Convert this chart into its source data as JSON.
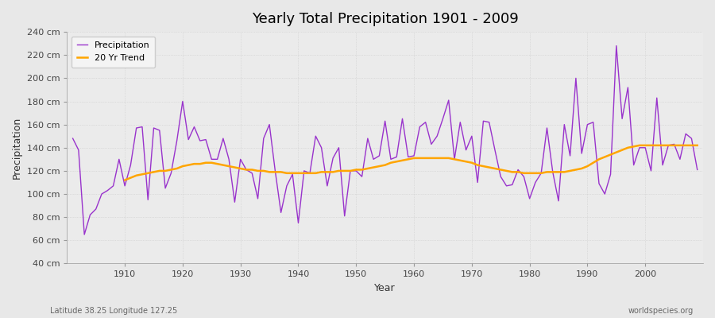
{
  "title": "Yearly Total Precipitation 1901 - 2009",
  "xlabel": "Year",
  "ylabel": "Precipitation",
  "subtitle_left": "Latitude 38.25 Longitude 127.25",
  "subtitle_right": "worldspecies.org",
  "precip_color": "#9933CC",
  "trend_color": "#FFA500",
  "fig_bg_color": "#E8E8E8",
  "plot_bg_color": "#EBEBEB",
  "legend_bg": "#F5F5F5",
  "ylim": [
    40,
    240
  ],
  "yticks": [
    40,
    60,
    80,
    100,
    120,
    140,
    160,
    180,
    200,
    220,
    240
  ],
  "xlim": [
    1900,
    2010
  ],
  "xticks": [
    1910,
    1920,
    1930,
    1940,
    1950,
    1960,
    1970,
    1980,
    1990,
    2000
  ],
  "years": [
    1901,
    1902,
    1903,
    1904,
    1905,
    1906,
    1907,
    1908,
    1909,
    1910,
    1911,
    1912,
    1913,
    1914,
    1915,
    1916,
    1917,
    1918,
    1919,
    1920,
    1921,
    1922,
    1923,
    1924,
    1925,
    1926,
    1927,
    1928,
    1929,
    1930,
    1931,
    1932,
    1933,
    1934,
    1935,
    1936,
    1937,
    1938,
    1939,
    1940,
    1941,
    1942,
    1943,
    1944,
    1945,
    1946,
    1947,
    1948,
    1949,
    1950,
    1951,
    1952,
    1953,
    1954,
    1955,
    1956,
    1957,
    1958,
    1959,
    1960,
    1961,
    1962,
    1963,
    1964,
    1965,
    1966,
    1967,
    1968,
    1969,
    1970,
    1971,
    1972,
    1973,
    1974,
    1975,
    1976,
    1977,
    1978,
    1979,
    1980,
    1981,
    1982,
    1983,
    1984,
    1985,
    1986,
    1987,
    1988,
    1989,
    1990,
    1991,
    1992,
    1993,
    1994,
    1995,
    1996,
    1997,
    1998,
    1999,
    2000,
    2001,
    2002,
    2003,
    2004,
    2005,
    2006,
    2007,
    2008,
    2009
  ],
  "precipitation": [
    148,
    138,
    65,
    82,
    87,
    100,
    103,
    107,
    130,
    107,
    125,
    157,
    158,
    95,
    157,
    155,
    105,
    118,
    146,
    180,
    147,
    158,
    146,
    147,
    130,
    130,
    148,
    130,
    93,
    130,
    121,
    118,
    96,
    148,
    160,
    120,
    84,
    107,
    117,
    75,
    120,
    118,
    150,
    140,
    107,
    131,
    140,
    81,
    120,
    120,
    115,
    148,
    130,
    133,
    163,
    130,
    132,
    165,
    132,
    133,
    158,
    162,
    143,
    150,
    165,
    181,
    130,
    162,
    138,
    150,
    110,
    163,
    162,
    138,
    115,
    107,
    108,
    121,
    115,
    96,
    110,
    118,
    157,
    119,
    94,
    160,
    133,
    200,
    135,
    160,
    162,
    109,
    100,
    117,
    228,
    165,
    192,
    125,
    140,
    140,
    120,
    183,
    125,
    142,
    143,
    130,
    152,
    148,
    121
  ],
  "trend": [
    null,
    null,
    null,
    null,
    null,
    null,
    null,
    null,
    null,
    112,
    114,
    116,
    117,
    118,
    119,
    120,
    120,
    121,
    122,
    124,
    125,
    126,
    126,
    127,
    127,
    126,
    125,
    124,
    123,
    122,
    121,
    121,
    120,
    120,
    119,
    119,
    119,
    118,
    118,
    118,
    118,
    118,
    118,
    119,
    119,
    119,
    120,
    120,
    120,
    121,
    121,
    122,
    123,
    124,
    125,
    127,
    128,
    129,
    130,
    131,
    131,
    131,
    131,
    131,
    131,
    131,
    130,
    129,
    128,
    127,
    125,
    124,
    123,
    122,
    121,
    120,
    119,
    119,
    118,
    118,
    118,
    118,
    119,
    119,
    119,
    119,
    120,
    121,
    122,
    124,
    127,
    130,
    132,
    134,
    136,
    138,
    140,
    141,
    142,
    142,
    142,
    142,
    142,
    142,
    142,
    142,
    142,
    142,
    142
  ]
}
